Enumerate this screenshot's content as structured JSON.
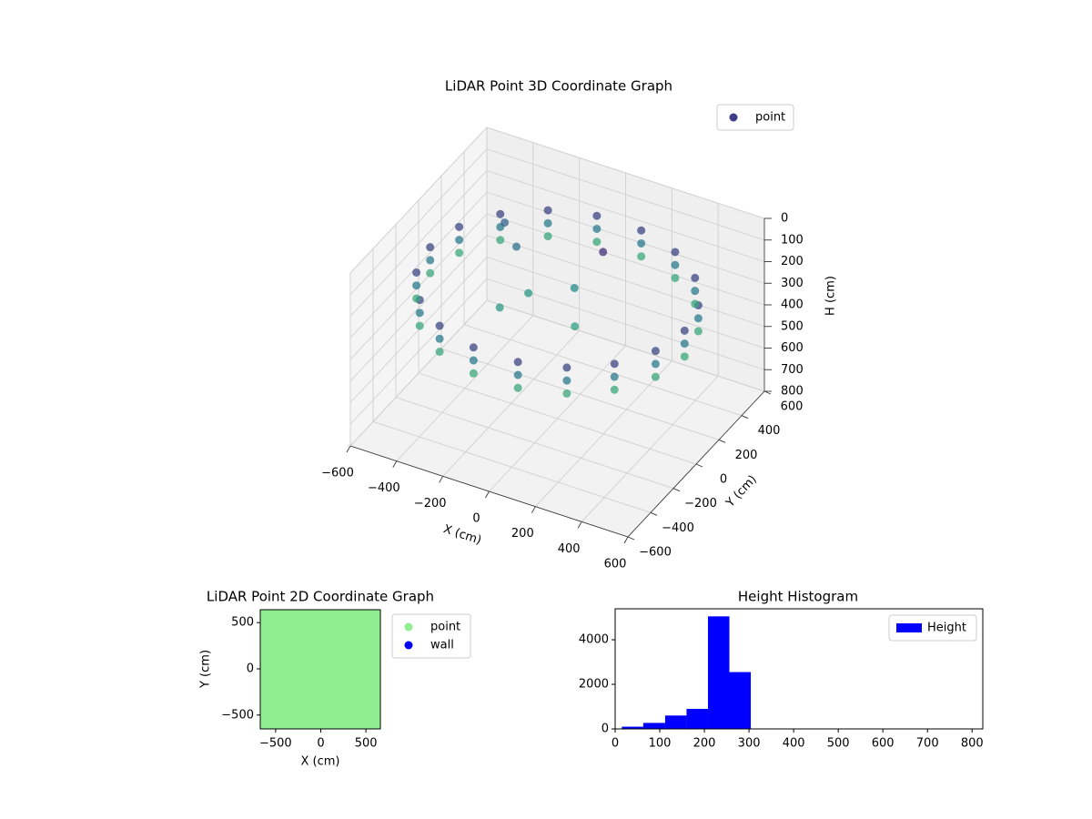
{
  "chart_data": [
    {
      "type": "scatter3d",
      "title": "LiDAR Point 3D Coordinate Graph",
      "xlabel": "X (cm)",
      "ylabel": "Y (cm)",
      "zlabel": "H (cm)",
      "xlim": [
        -600,
        600
      ],
      "ylim": [
        -600,
        600
      ],
      "zlim": [
        0,
        800
      ],
      "zaxis_inverted": true,
      "colormap": "viridis",
      "grid": true,
      "legend": "upper right",
      "xticks": [
        {
          "value": -600,
          "label": "−600"
        },
        {
          "value": -400,
          "label": "−400"
        },
        {
          "value": -200,
          "label": "−200"
        },
        0,
        200,
        400,
        600
      ],
      "yticks": [
        {
          "value": -600,
          "label": "−600"
        },
        {
          "value": -400,
          "label": "−400"
        },
        {
          "value": -200,
          "label": "−200"
        },
        0,
        200,
        400,
        600
      ],
      "zticks": [
        0,
        100,
        200,
        300,
        400,
        500,
        600,
        700,
        800
      ],
      "series": [
        {
          "name": "point",
          "color": "#3e3d87",
          "x": [
            550,
            517,
            421,
            275,
            96,
            -96,
            -275,
            -421,
            -517,
            -550,
            -517,
            -421,
            -275,
            -96,
            96,
            275,
            421,
            517,
            550,
            517,
            421,
            275,
            96,
            -96,
            -275,
            -421,
            -517,
            -550,
            -517,
            -421,
            -275,
            -96,
            96,
            275,
            421,
            517,
            550,
            517,
            421,
            275,
            96,
            -96,
            -275,
            -421,
            -517,
            -550,
            -517,
            -421,
            -275,
            -96,
            96,
            275,
            421,
            517,
            -150,
            0,
            100,
            -300,
            -400,
            50,
            -200
          ],
          "y": [
            0,
            188,
            354,
            476,
            542,
            542,
            476,
            354,
            188,
            0,
            -188,
            -354,
            -476,
            -542,
            -542,
            -476,
            -354,
            -188,
            0,
            188,
            354,
            476,
            542,
            542,
            476,
            354,
            188,
            0,
            -188,
            -354,
            -476,
            -542,
            -542,
            -476,
            -354,
            -188,
            0,
            188,
            354,
            476,
            542,
            542,
            476,
            354,
            188,
            0,
            -188,
            -354,
            -476,
            -542,
            -542,
            -476,
            -354,
            -188,
            50,
            150,
            -50,
            250,
            350,
            300,
            -100
          ],
          "z": [
            200,
            200,
            200,
            200,
            200,
            200,
            200,
            200,
            200,
            200,
            200,
            200,
            200,
            200,
            200,
            200,
            200,
            200,
            260,
            260,
            260,
            260,
            260,
            260,
            260,
            260,
            260,
            260,
            260,
            260,
            260,
            260,
            260,
            260,
            260,
            260,
            320,
            320,
            320,
            320,
            320,
            320,
            320,
            320,
            320,
            320,
            320,
            320,
            320,
            320,
            320,
            320,
            320,
            320,
            300,
            280,
            310,
            250,
            230,
            180,
            300
          ]
        }
      ]
    },
    {
      "type": "scatter",
      "title": "LiDAR Point 2D Coordinate Graph",
      "xlabel": "X (cm)",
      "ylabel": "Y (cm)",
      "xlim": [
        -670,
        660
      ],
      "ylim": [
        -650,
        640
      ],
      "legend": "outside right",
      "xticks": [
        {
          "value": -500,
          "label": "−500"
        },
        0,
        500
      ],
      "yticks": [
        {
          "value": -500,
          "label": "−500"
        },
        0,
        500
      ],
      "series": [
        {
          "name": "point",
          "color": "#90ee90",
          "x": [
            0,
            180,
            90,
            -90,
            -180,
            -90,
            90,
            360,
            312,
            180,
            0,
            -180,
            -312,
            -360,
            -312,
            -180,
            0,
            180,
            312,
            540,
            507,
            414,
            270,
            94,
            -94,
            -270,
            -414,
            -507,
            -540,
            -507,
            -414,
            -270,
            -94,
            94,
            270,
            414,
            507
          ],
          "y": [
            0,
            0,
            156,
            156,
            0,
            -156,
            -156,
            0,
            180,
            312,
            360,
            312,
            180,
            0,
            -180,
            -312,
            -360,
            -312,
            -180,
            0,
            185,
            347,
            468,
            532,
            532,
            468,
            347,
            185,
            0,
            -185,
            -347,
            -468,
            -532,
            -532,
            -468,
            -347,
            -185
          ]
        },
        {
          "name": "wall",
          "color": "#0000ff",
          "x": [],
          "y": []
        }
      ]
    },
    {
      "type": "histogram",
      "title": "Height Histogram",
      "xlim": [
        0,
        824
      ],
      "ylim": [
        0,
        5390
      ],
      "legend": "upper right",
      "xticks": [
        0,
        100,
        200,
        300,
        400,
        500,
        600,
        700,
        800
      ],
      "yticks": [
        0,
        2000,
        4000
      ],
      "bins": [
        15,
        63,
        112,
        160,
        208,
        256,
        304
      ],
      "series": [
        {
          "name": "Height",
          "color": "#0000ff",
          "values": [
            100,
            270,
            600,
            900,
            5050,
            2550
          ]
        }
      ]
    }
  ]
}
